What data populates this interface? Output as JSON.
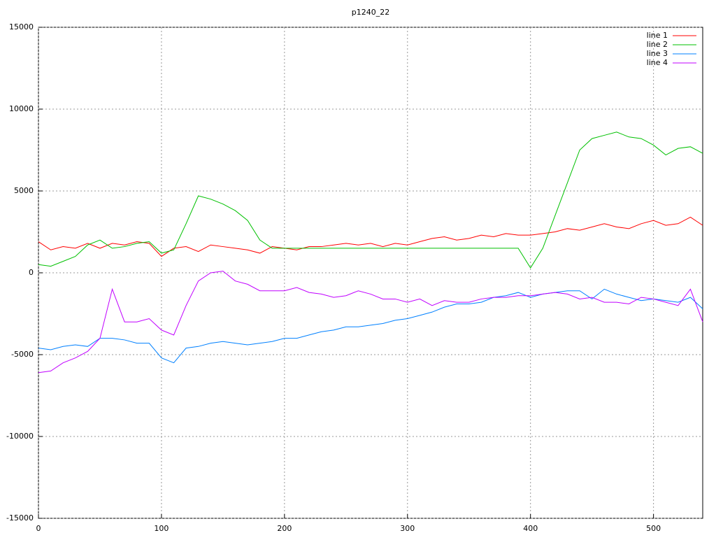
{
  "chart_data": {
    "type": "line",
    "title": "p1240_22",
    "x": [
      0,
      10,
      20,
      30,
      40,
      50,
      60,
      70,
      80,
      90,
      100,
      110,
      120,
      130,
      140,
      150,
      160,
      170,
      180,
      190,
      200,
      210,
      220,
      230,
      240,
      250,
      260,
      270,
      280,
      290,
      300,
      310,
      320,
      330,
      340,
      350,
      360,
      370,
      380,
      390,
      400,
      410,
      420,
      430,
      440,
      450,
      460,
      470,
      480,
      490,
      500,
      510,
      520,
      530,
      540
    ],
    "series": [
      {
        "name": "line 1",
        "color": "#ff0000",
        "values": [
          1900,
          1400,
          1600,
          1500,
          1800,
          1500,
          1800,
          1700,
          1900,
          1800,
          1000,
          1500,
          1600,
          1300,
          1700,
          1600,
          1500,
          1400,
          1200,
          1600,
          1500,
          1400,
          1600,
          1600,
          1700,
          1800,
          1700,
          1800,
          1600,
          1800,
          1700,
          1900,
          2100,
          2200,
          2000,
          2100,
          2300,
          2200,
          2400,
          2300,
          2300,
          2400,
          2500,
          2700,
          2600,
          2800,
          3000,
          2800,
          2700,
          3000,
          3200,
          2900,
          3000,
          3400,
          2900
        ]
      },
      {
        "name": "line 2",
        "color": "#00c000",
        "values": [
          500,
          400,
          700,
          1000,
          1700,
          2000,
          1500,
          1600,
          1800,
          1900,
          1200,
          1400,
          3000,
          4700,
          4500,
          4200,
          3800,
          3200,
          2000,
          1500,
          1500,
          1500,
          1500,
          1500,
          1500,
          1500,
          1500,
          1500,
          1500,
          1500,
          1500,
          1500,
          1500,
          1500,
          1500,
          1500,
          1500,
          1500,
          1500,
          1500,
          300,
          1500,
          3500,
          5500,
          7500,
          8200,
          8400,
          8600,
          8300,
          8200,
          7800,
          7200,
          7600,
          7700,
          7300
        ]
      },
      {
        "name": "line 3",
        "color": "#0080ff",
        "values": [
          -4600,
          -4700,
          -4500,
          -4400,
          -4500,
          -4000,
          -4000,
          -4100,
          -4300,
          -4300,
          -5200,
          -5500,
          -4600,
          -4500,
          -4300,
          -4200,
          -4300,
          -4400,
          -4300,
          -4200,
          -4000,
          -4000,
          -3800,
          -3600,
          -3500,
          -3300,
          -3300,
          -3200,
          -3100,
          -2900,
          -2800,
          -2600,
          -2400,
          -2100,
          -1900,
          -1900,
          -1800,
          -1500,
          -1400,
          -1200,
          -1500,
          -1300,
          -1200,
          -1100,
          -1100,
          -1600,
          -1000,
          -1300,
          -1500,
          -1700,
          -1600,
          -1700,
          -1800,
          -1500,
          -2200
        ]
      },
      {
        "name": "line 4",
        "color": "#c000ff",
        "values": [
          -6100,
          -6000,
          -5500,
          -5200,
          -4800,
          -4000,
          -1000,
          -3000,
          -3000,
          -2800,
          -3500,
          -3800,
          -2000,
          -500,
          0,
          100,
          -500,
          -700,
          -1100,
          -1100,
          -1100,
          -900,
          -1200,
          -1300,
          -1500,
          -1400,
          -1100,
          -1300,
          -1600,
          -1600,
          -1800,
          -1600,
          -2000,
          -1700,
          -1800,
          -1800,
          -1600,
          -1500,
          -1500,
          -1400,
          -1400,
          -1300,
          -1200,
          -1300,
          -1600,
          -1500,
          -1800,
          -1800,
          -1900,
          -1500,
          -1600,
          -1800,
          -2000,
          -1000,
          -3000
        ]
      }
    ],
    "xlim": [
      0,
      540
    ],
    "xticks": [
      0,
      100,
      200,
      300,
      400,
      500
    ],
    "ylim": [
      -15000,
      15000
    ],
    "yticks": [
      -15000,
      -10000,
      -5000,
      0,
      5000,
      10000,
      15000
    ],
    "grid": true,
    "legend": "top-right"
  }
}
